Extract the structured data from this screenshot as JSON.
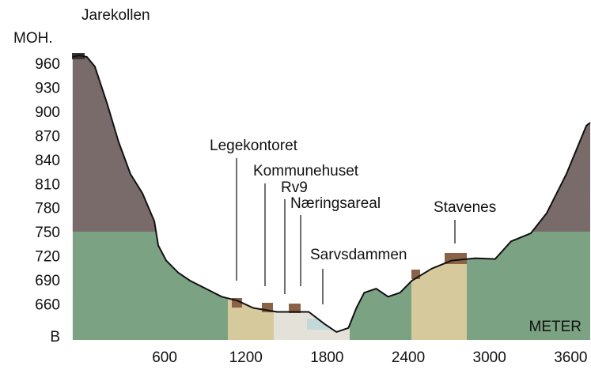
{
  "chart_data": {
    "type": "area",
    "title": "Jarekollen",
    "y_label": "MOH.",
    "x_label": "METER",
    "annotations": [
      "Legekontoret",
      "Kommunehuset",
      "Rv9",
      "Næringsareal",
      "Sarvsdammen",
      "Stavenes"
    ],
    "x": [
      -79,
      -32,
      26,
      85,
      173,
      260,
      348,
      436,
      524,
      553,
      612,
      700,
      788,
      905,
      1022,
      1138,
      1255,
      1431,
      1665,
      1782,
      1870,
      1958,
      2017,
      2075,
      2163,
      2251,
      2339,
      2427,
      2573,
      2720,
      2895,
      3042,
      3159,
      3305,
      3422,
      3568,
      3715,
      3744
    ],
    "values": [
      970,
      972,
      970,
      958,
      913,
      864,
      824,
      800,
      765,
      735,
      716,
      701,
      691,
      681,
      671,
      666,
      657,
      652,
      652,
      637,
      627,
      632,
      657,
      676,
      681,
      671,
      676,
      691,
      706,
      716,
      719,
      718,
      740,
      750,
      775,
      824,
      884,
      888
    ],
    "color": "#7ba283",
    "xlim": [
      -90,
      3750
    ],
    "ylim": [
      620,
      1041
    ],
    "xticks": [
      600,
      1200,
      1800,
      2400,
      3000,
      3600
    ],
    "yticks": [
      {
        "value": 620,
        "label": "B"
      },
      660,
      690,
      720,
      750,
      780,
      810,
      840,
      870,
      900,
      930,
      960
    ],
    "grid": false
  }
}
